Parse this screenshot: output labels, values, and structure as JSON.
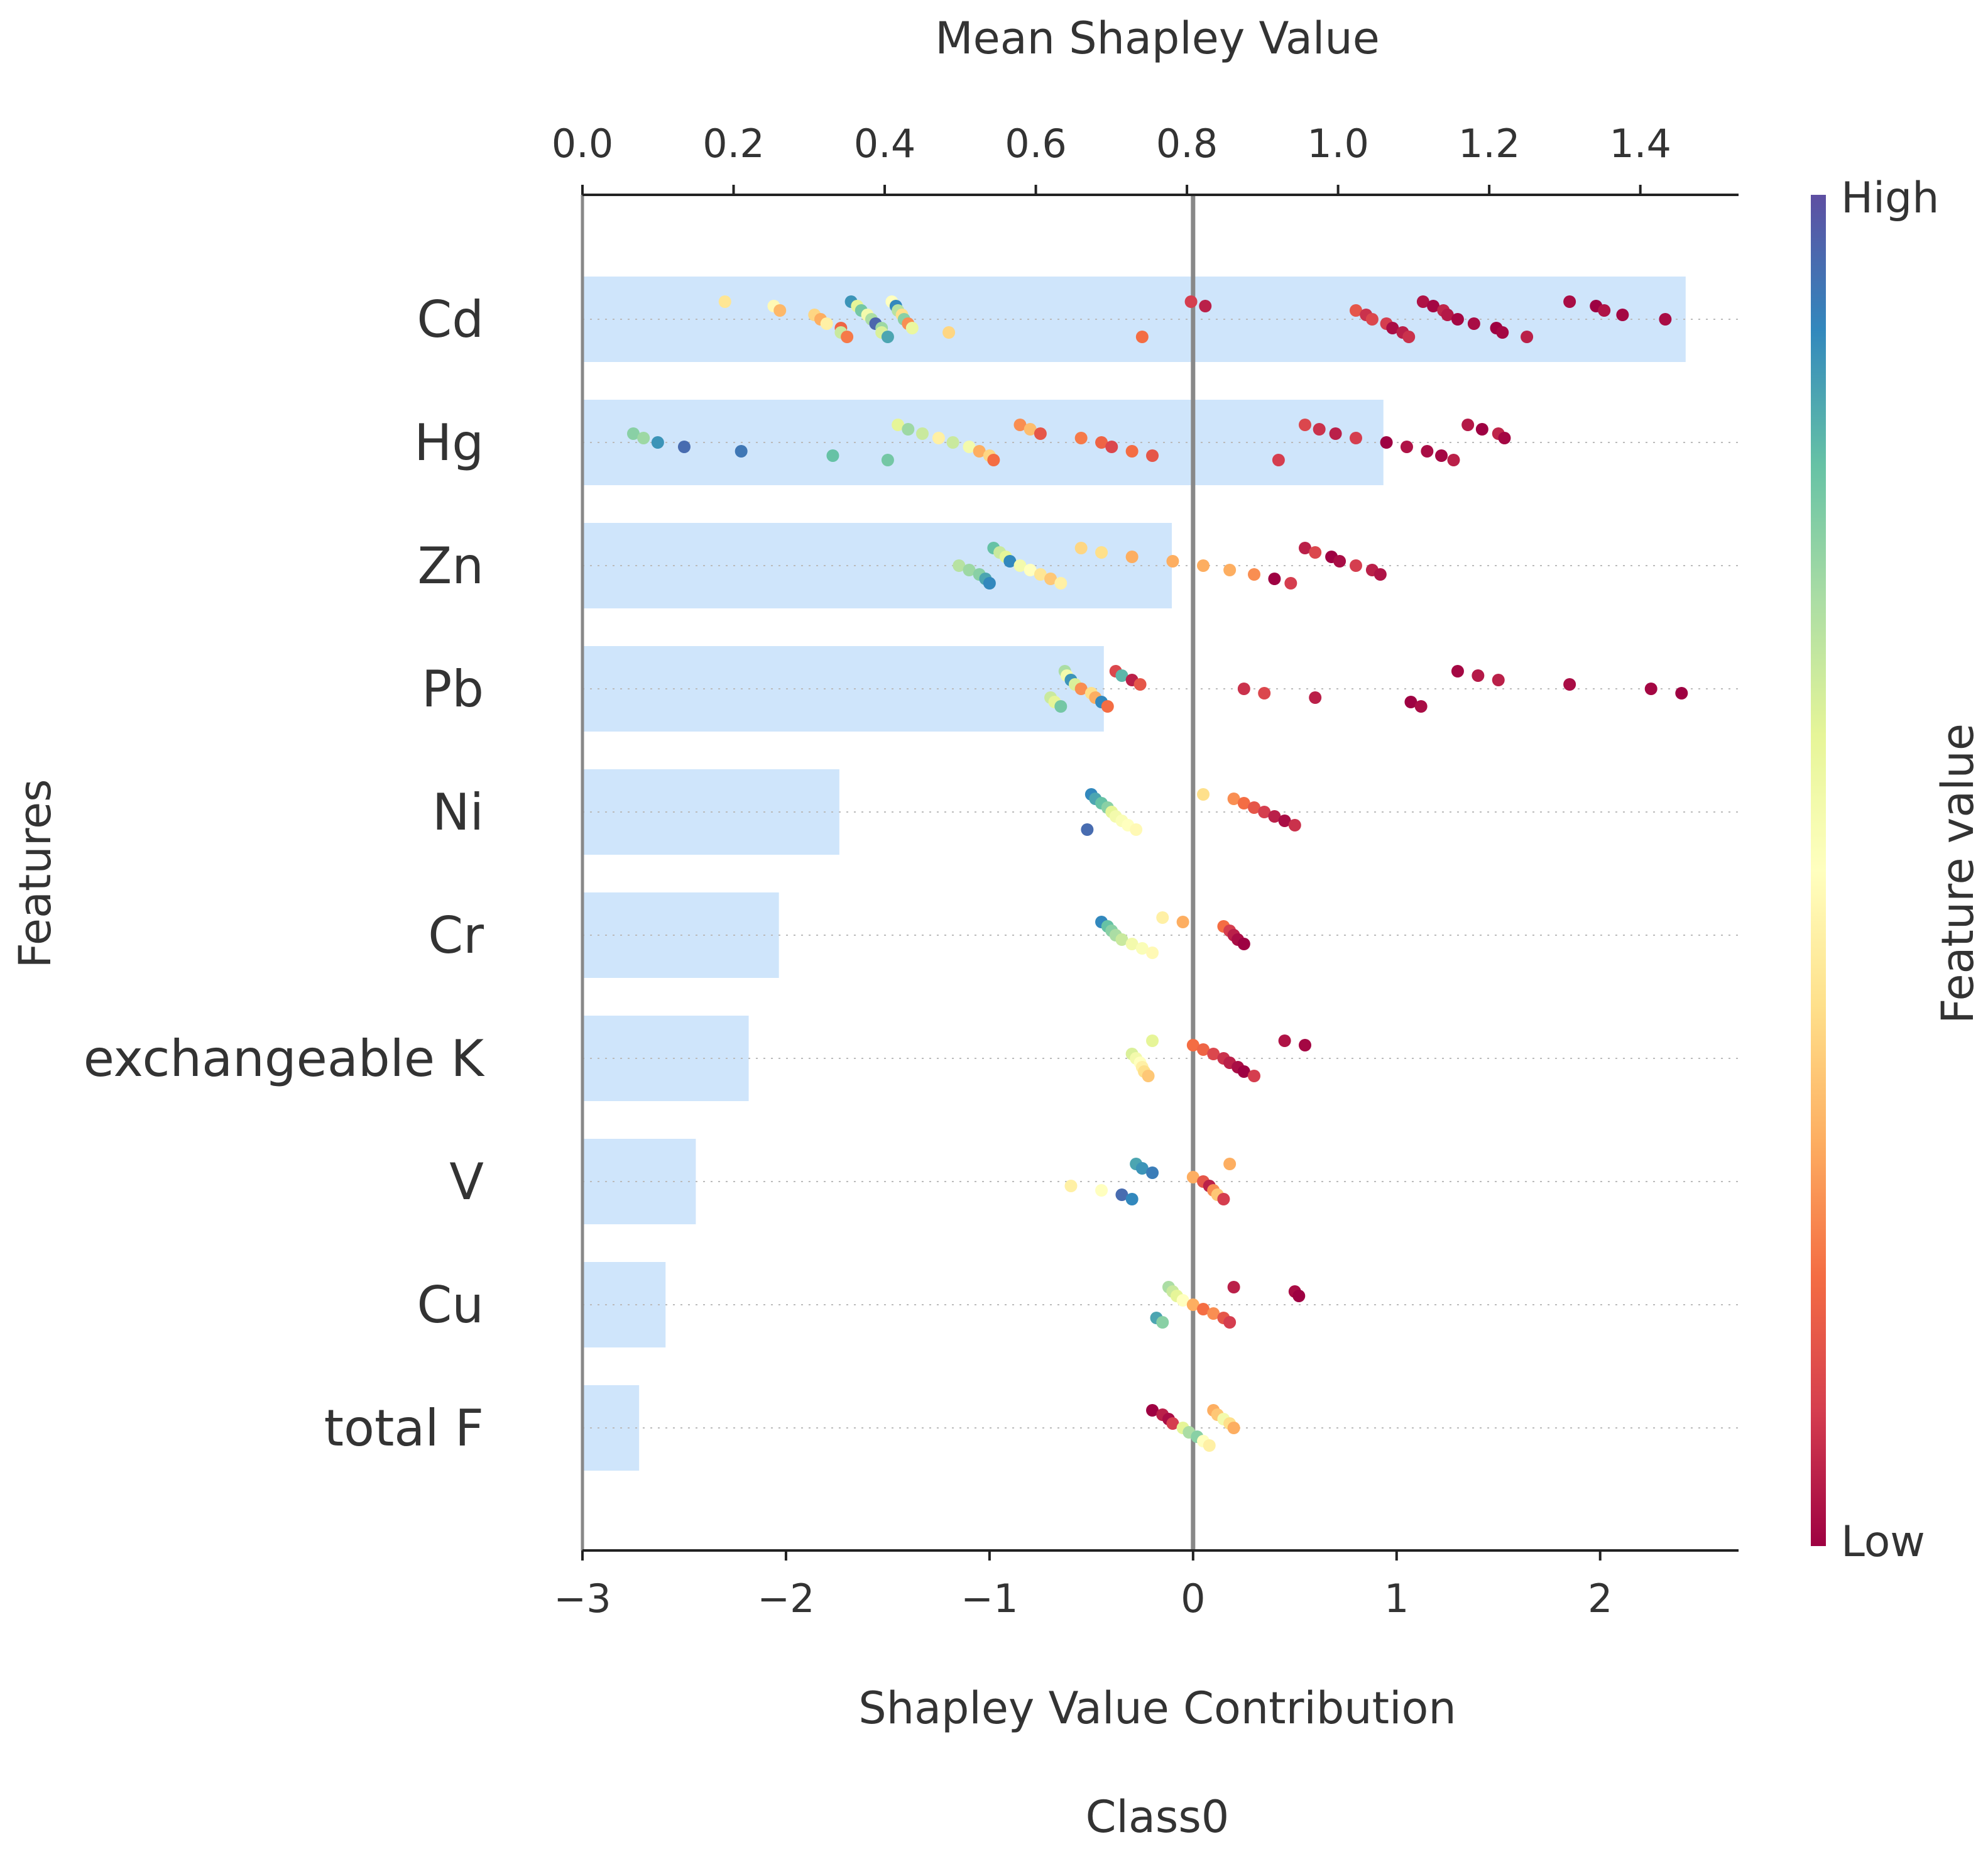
{
  "chart_data": {
    "type": "shap_summary",
    "title": "Class0",
    "top_axis": {
      "label": "Mean Shapley Value",
      "range": [
        0.0,
        1.53
      ],
      "ticks": [
        0.0,
        0.2,
        0.4,
        0.6,
        0.8,
        1.0,
        1.2,
        1.4
      ],
      "tick_labels": [
        "0.0",
        "0.2",
        "0.4",
        "0.6",
        "0.8",
        "1.0",
        "1.2",
        "1.4"
      ]
    },
    "bottom_axis": {
      "label": "Shapley Value Contribution",
      "range": [
        -3.0,
        2.68
      ],
      "ticks": [
        -3,
        -2,
        -1,
        0,
        1,
        2
      ],
      "tick_labels": [
        "−3",
        "−2",
        "−1",
        "0",
        "1",
        "2"
      ]
    },
    "ylabel": "Features",
    "colorbar": {
      "label": "Feature value",
      "high_label": "High",
      "low_label": "Low",
      "colormap": "Spectral",
      "stops": [
        "#9e0142",
        "#d53e4f",
        "#f46d43",
        "#fdae61",
        "#fee08b",
        "#ffffbf",
        "#e6f598",
        "#abdda4",
        "#66c2a5",
        "#3288bd",
        "#5e4fa2"
      ]
    },
    "bar_color": "#cfe5fb",
    "features": [
      {
        "name": "Cd",
        "mean_abs_shap": 1.46,
        "points": [
          [
            -2.3,
            0.42
          ],
          [
            -2.06,
            0.48
          ],
          [
            -2.03,
            0.32
          ],
          [
            -1.86,
            0.38
          ],
          [
            -1.83,
            0.3
          ],
          [
            -1.8,
            0.45
          ],
          [
            -1.73,
            0.18
          ],
          [
            -1.73,
            0.65
          ],
          [
            -1.7,
            0.22
          ],
          [
            -1.68,
            0.88
          ],
          [
            -1.65,
            0.6
          ],
          [
            -1.63,
            0.78
          ],
          [
            -1.6,
            0.55
          ],
          [
            -1.58,
            0.7
          ],
          [
            -1.56,
            0.96
          ],
          [
            -1.53,
            0.72
          ],
          [
            -1.53,
            0.62
          ],
          [
            -1.5,
            0.85
          ],
          [
            -1.48,
            0.5
          ],
          [
            -1.46,
            0.9
          ],
          [
            -1.45,
            0.68
          ],
          [
            -1.43,
            0.4
          ],
          [
            -1.42,
            0.75
          ],
          [
            -1.4,
            0.25
          ],
          [
            -1.38,
            0.58
          ],
          [
            -1.2,
            0.38
          ],
          [
            -0.25,
            0.2
          ],
          [
            -0.01,
            0.1
          ],
          [
            0.06,
            0.05
          ],
          [
            0.8,
            0.15
          ],
          [
            0.85,
            0.08
          ],
          [
            0.88,
            0.12
          ],
          [
            0.95,
            0.1
          ],
          [
            0.98,
            0.02
          ],
          [
            1.03,
            0.05
          ],
          [
            1.06,
            0.08
          ],
          [
            1.13,
            0.03
          ],
          [
            1.18,
            0.01
          ],
          [
            1.23,
            0.06
          ],
          [
            1.25,
            0.04
          ],
          [
            1.3,
            0.01
          ],
          [
            1.38,
            0.02
          ],
          [
            1.49,
            0.0
          ],
          [
            1.52,
            0.01
          ],
          [
            1.64,
            0.05
          ],
          [
            1.85,
            0.02
          ],
          [
            1.98,
            0.0
          ],
          [
            2.02,
            0.03
          ],
          [
            2.11,
            0.01
          ],
          [
            2.32,
            0.02
          ]
        ]
      },
      {
        "name": "Hg",
        "mean_abs_shap": 1.06,
        "points": [
          [
            -2.75,
            0.75
          ],
          [
            -2.7,
            0.72
          ],
          [
            -2.63,
            0.88
          ],
          [
            -2.5,
            0.95
          ],
          [
            -2.22,
            0.93
          ],
          [
            -1.77,
            0.8
          ],
          [
            -1.5,
            0.78
          ],
          [
            -1.45,
            0.6
          ],
          [
            -1.4,
            0.72
          ],
          [
            -1.33,
            0.65
          ],
          [
            -1.25,
            0.45
          ],
          [
            -1.18,
            0.65
          ],
          [
            -1.1,
            0.55
          ],
          [
            -1.05,
            0.3
          ],
          [
            -1.0,
            0.38
          ],
          [
            -0.98,
            0.2
          ],
          [
            -0.85,
            0.25
          ],
          [
            -0.8,
            0.33
          ],
          [
            -0.75,
            0.15
          ],
          [
            -0.55,
            0.22
          ],
          [
            -0.45,
            0.18
          ],
          [
            -0.4,
            0.12
          ],
          [
            -0.3,
            0.2
          ],
          [
            -0.2,
            0.15
          ],
          [
            0.42,
            0.1
          ],
          [
            0.55,
            0.12
          ],
          [
            0.62,
            0.08
          ],
          [
            0.7,
            0.05
          ],
          [
            0.8,
            0.1
          ],
          [
            0.95,
            0.0
          ],
          [
            1.05,
            0.03
          ],
          [
            1.15,
            0.02
          ],
          [
            1.22,
            0.01
          ],
          [
            1.28,
            0.05
          ],
          [
            1.35,
            0.04
          ],
          [
            1.42,
            0.0
          ],
          [
            1.5,
            0.06
          ],
          [
            1.53,
            0.01
          ]
        ]
      },
      {
        "name": "Zn",
        "mean_abs_shap": 0.78,
        "points": [
          [
            -1.15,
            0.68
          ],
          [
            -1.1,
            0.72
          ],
          [
            -1.05,
            0.75
          ],
          [
            -1.02,
            0.85
          ],
          [
            -1.0,
            0.9
          ],
          [
            -0.98,
            0.8
          ],
          [
            -0.95,
            0.65
          ],
          [
            -0.92,
            0.6
          ],
          [
            -0.9,
            0.9
          ],
          [
            -0.85,
            0.55
          ],
          [
            -0.8,
            0.5
          ],
          [
            -0.75,
            0.42
          ],
          [
            -0.7,
            0.35
          ],
          [
            -0.65,
            0.45
          ],
          [
            -0.55,
            0.38
          ],
          [
            -0.45,
            0.4
          ],
          [
            -0.3,
            0.3
          ],
          [
            -0.1,
            0.3
          ],
          [
            0.05,
            0.3
          ],
          [
            0.18,
            0.3
          ],
          [
            0.3,
            0.25
          ],
          [
            0.4,
            0.0
          ],
          [
            0.48,
            0.1
          ],
          [
            0.55,
            0.05
          ],
          [
            0.6,
            0.12
          ],
          [
            0.68,
            0.0
          ],
          [
            0.72,
            0.02
          ],
          [
            0.8,
            0.1
          ],
          [
            0.88,
            0.05
          ],
          [
            0.92,
            0.03
          ]
        ]
      },
      {
        "name": "Pb",
        "mean_abs_shap": 0.69,
        "points": [
          [
            -0.7,
            0.65
          ],
          [
            -0.68,
            0.6
          ],
          [
            -0.65,
            0.78
          ],
          [
            -0.63,
            0.7
          ],
          [
            -0.62,
            0.55
          ],
          [
            -0.6,
            0.88
          ],
          [
            -0.58,
            0.62
          ],
          [
            -0.55,
            0.25
          ],
          [
            -0.5,
            0.4
          ],
          [
            -0.48,
            0.3
          ],
          [
            -0.45,
            0.9
          ],
          [
            -0.42,
            0.2
          ],
          [
            -0.38,
            0.12
          ],
          [
            -0.35,
            0.82
          ],
          [
            -0.3,
            0.05
          ],
          [
            -0.26,
            0.15
          ],
          [
            0.25,
            0.08
          ],
          [
            0.35,
            0.12
          ],
          [
            0.6,
            0.05
          ],
          [
            1.07,
            0.0
          ],
          [
            1.12,
            0.02
          ],
          [
            1.3,
            0.01
          ],
          [
            1.4,
            0.04
          ],
          [
            1.5,
            0.05
          ],
          [
            1.85,
            0.02
          ],
          [
            2.25,
            0.01
          ],
          [
            2.4,
            0.0
          ]
        ]
      },
      {
        "name": "Ni",
        "mean_abs_shap": 0.34,
        "points": [
          [
            -0.52,
            0.95
          ],
          [
            -0.5,
            0.9
          ],
          [
            -0.48,
            0.85
          ],
          [
            -0.45,
            0.8
          ],
          [
            -0.42,
            0.75
          ],
          [
            -0.4,
            0.6
          ],
          [
            -0.38,
            0.55
          ],
          [
            -0.35,
            0.52
          ],
          [
            -0.32,
            0.5
          ],
          [
            -0.28,
            0.48
          ],
          [
            0.05,
            0.4
          ],
          [
            0.2,
            0.25
          ],
          [
            0.25,
            0.2
          ],
          [
            0.3,
            0.15
          ],
          [
            0.35,
            0.1
          ],
          [
            0.4,
            0.05
          ],
          [
            0.45,
            0.02
          ],
          [
            0.5,
            0.08
          ]
        ]
      },
      {
        "name": "Cr",
        "mean_abs_shap": 0.26,
        "points": [
          [
            -0.45,
            0.9
          ],
          [
            -0.42,
            0.8
          ],
          [
            -0.4,
            0.75
          ],
          [
            -0.38,
            0.7
          ],
          [
            -0.35,
            0.65
          ],
          [
            -0.3,
            0.55
          ],
          [
            -0.25,
            0.52
          ],
          [
            -0.2,
            0.48
          ],
          [
            -0.15,
            0.45
          ],
          [
            -0.05,
            0.3
          ],
          [
            0.15,
            0.2
          ],
          [
            0.18,
            0.1
          ],
          [
            0.2,
            0.05
          ],
          [
            0.22,
            0.02
          ],
          [
            0.25,
            0.0
          ]
        ]
      },
      {
        "name": "exchangeable K",
        "mean_abs_shap": 0.22,
        "points": [
          [
            -0.3,
            0.62
          ],
          [
            -0.28,
            0.55
          ],
          [
            -0.26,
            0.5
          ],
          [
            -0.25,
            0.45
          ],
          [
            -0.24,
            0.4
          ],
          [
            -0.22,
            0.35
          ],
          [
            -0.2,
            0.6
          ],
          [
            0.0,
            0.2
          ],
          [
            0.05,
            0.18
          ],
          [
            0.1,
            0.12
          ],
          [
            0.15,
            0.08
          ],
          [
            0.18,
            0.05
          ],
          [
            0.22,
            0.02
          ],
          [
            0.25,
            0.0
          ],
          [
            0.3,
            0.1
          ],
          [
            0.45,
            0.03
          ],
          [
            0.55,
            0.01
          ]
        ]
      },
      {
        "name": "V",
        "mean_abs_shap": 0.15,
        "points": [
          [
            -0.6,
            0.45
          ],
          [
            -0.45,
            0.5
          ],
          [
            -0.35,
            0.95
          ],
          [
            -0.3,
            0.9
          ],
          [
            -0.28,
            0.85
          ],
          [
            -0.25,
            0.88
          ],
          [
            -0.2,
            0.92
          ],
          [
            0.0,
            0.3
          ],
          [
            0.05,
            0.15
          ],
          [
            0.08,
            0.05
          ],
          [
            0.1,
            0.25
          ],
          [
            0.12,
            0.35
          ],
          [
            0.15,
            0.1
          ],
          [
            0.18,
            0.3
          ]
        ]
      },
      {
        "name": "Cu",
        "mean_abs_shap": 0.11,
        "points": [
          [
            -0.18,
            0.85
          ],
          [
            -0.15,
            0.75
          ],
          [
            -0.12,
            0.7
          ],
          [
            -0.1,
            0.65
          ],
          [
            -0.08,
            0.6
          ],
          [
            -0.05,
            0.5
          ],
          [
            0.0,
            0.3
          ],
          [
            0.05,
            0.2
          ],
          [
            0.1,
            0.25
          ],
          [
            0.15,
            0.15
          ],
          [
            0.18,
            0.1
          ],
          [
            0.2,
            0.05
          ],
          [
            0.5,
            0.02
          ],
          [
            0.52,
            0.0
          ]
        ]
      },
      {
        "name": "total F",
        "mean_abs_shap": 0.075,
        "points": [
          [
            -0.2,
            0.0
          ],
          [
            -0.15,
            0.05
          ],
          [
            -0.12,
            0.02
          ],
          [
            -0.1,
            0.1
          ],
          [
            -0.05,
            0.6
          ],
          [
            -0.02,
            0.7
          ],
          [
            0.02,
            0.75
          ],
          [
            0.05,
            0.5
          ],
          [
            0.08,
            0.45
          ],
          [
            0.1,
            0.3
          ],
          [
            0.12,
            0.35
          ],
          [
            0.15,
            0.55
          ],
          [
            0.18,
            0.4
          ],
          [
            0.2,
            0.3
          ]
        ]
      }
    ]
  }
}
